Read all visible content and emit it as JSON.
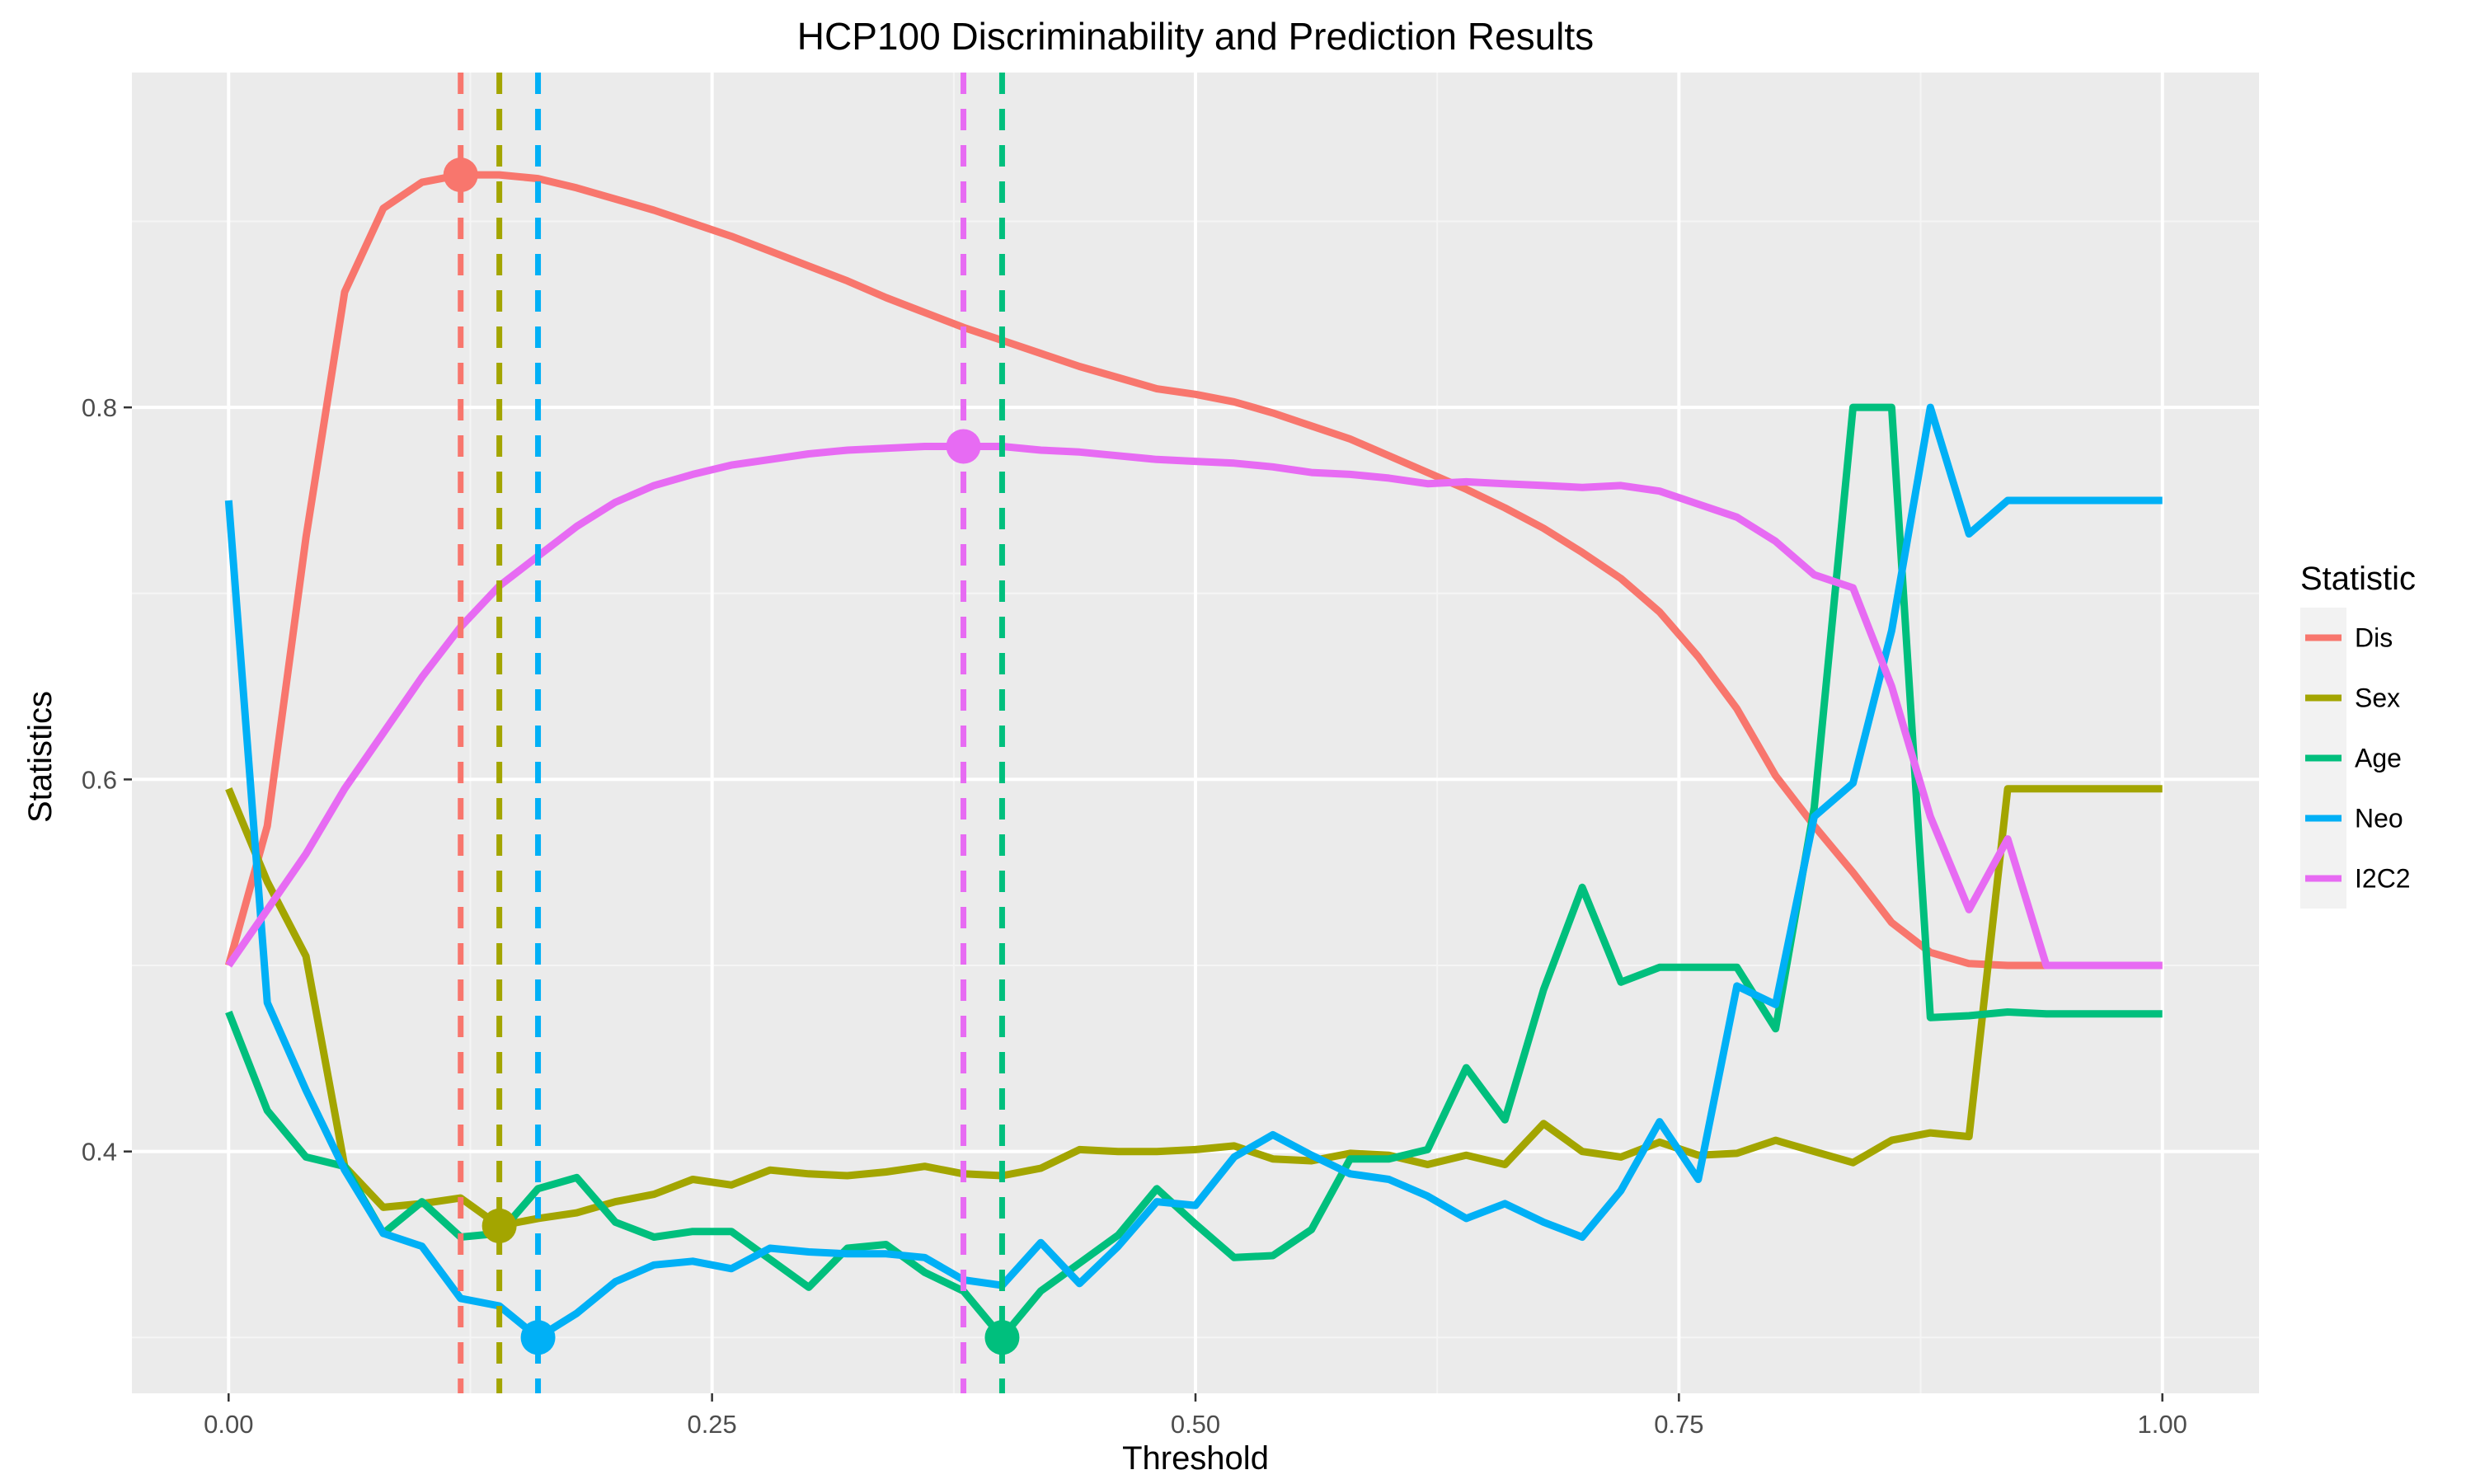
{
  "chart_data": {
    "type": "line",
    "title": "HCP100 Discriminability and Prediction Results",
    "xlabel": "Threshold",
    "ylabel": "Statistics",
    "xlim": [
      -0.05,
      1.05
    ],
    "ylim": [
      0.27,
      0.98
    ],
    "xticks": [
      0.0,
      0.25,
      0.5,
      0.75,
      1.0
    ],
    "xtick_labels": [
      "0.00",
      "0.25",
      "0.50",
      "0.75",
      "1.00"
    ],
    "yticks": [
      0.4,
      0.6,
      0.8
    ],
    "ytick_labels": [
      "0.4",
      "0.6",
      "0.8"
    ],
    "grid": true,
    "legend": {
      "title": "Statistic",
      "position": "right"
    },
    "x": [
      0.0,
      0.02,
      0.04,
      0.06,
      0.08,
      0.1,
      0.12,
      0.14,
      0.16,
      0.18,
      0.2,
      0.22,
      0.24,
      0.26,
      0.28,
      0.3,
      0.32,
      0.34,
      0.36,
      0.38,
      0.4,
      0.42,
      0.44,
      0.46,
      0.48,
      0.5,
      0.52,
      0.54,
      0.56,
      0.58,
      0.6,
      0.62,
      0.64,
      0.66,
      0.68,
      0.7,
      0.72,
      0.74,
      0.76,
      0.78,
      0.8,
      0.82,
      0.84,
      0.86,
      0.88,
      0.9,
      0.92,
      0.94,
      0.96,
      0.98,
      1.0
    ],
    "series": [
      {
        "name": "Dis",
        "color": "#F8766D",
        "values": [
          0.5,
          0.575,
          0.73,
          0.862,
          0.907,
          0.921,
          0.925,
          0.925,
          0.923,
          0.918,
          0.912,
          0.906,
          0.899,
          0.892,
          0.884,
          0.876,
          0.868,
          0.859,
          0.851,
          0.843,
          0.836,
          0.829,
          0.822,
          0.816,
          0.81,
          0.807,
          0.803,
          0.797,
          0.79,
          0.783,
          0.774,
          0.765,
          0.756,
          0.746,
          0.735,
          0.722,
          0.708,
          0.69,
          0.666,
          0.638,
          0.602,
          0.575,
          0.55,
          0.523,
          0.507,
          0.501,
          0.5,
          0.5,
          0.5,
          0.5,
          0.5
        ],
        "optimum": {
          "x": 0.12,
          "y": 0.925
        }
      },
      {
        "name": "Sex",
        "color": "#A3A500",
        "values": [
          0.595,
          0.545,
          0.505,
          0.392,
          0.37,
          0.372,
          0.375,
          0.36,
          0.364,
          0.367,
          0.373,
          0.377,
          0.385,
          0.382,
          0.39,
          0.388,
          0.387,
          0.389,
          0.392,
          0.388,
          0.387,
          0.391,
          0.401,
          0.4,
          0.4,
          0.401,
          0.403,
          0.396,
          0.395,
          0.399,
          0.398,
          0.393,
          0.398,
          0.393,
          0.415,
          0.4,
          0.397,
          0.405,
          0.398,
          0.399,
          0.406,
          0.4,
          0.394,
          0.406,
          0.41,
          0.408,
          0.595,
          0.595,
          0.595,
          0.595,
          0.595
        ],
        "optimum": {
          "x": 0.14,
          "y": 0.36
        }
      },
      {
        "name": "Age",
        "color": "#00BF7D",
        "values": [
          0.475,
          0.422,
          0.397,
          0.392,
          0.356,
          0.373,
          0.354,
          0.356,
          0.38,
          0.386,
          0.362,
          0.354,
          0.357,
          0.357,
          0.342,
          0.327,
          0.348,
          0.35,
          0.335,
          0.325,
          0.3,
          0.325,
          0.34,
          0.355,
          0.38,
          0.361,
          0.343,
          0.344,
          0.358,
          0.396,
          0.396,
          0.401,
          0.445,
          0.417,
          0.487,
          0.542,
          0.491,
          0.499,
          0.499,
          0.499,
          0.466,
          0.585,
          0.8,
          0.8,
          0.472,
          0.473,
          0.475,
          0.474,
          0.474,
          0.474,
          0.474
        ],
        "optimum": {
          "x": 0.4,
          "y": 0.3
        }
      },
      {
        "name": "Neo",
        "color": "#00B0F6",
        "values": [
          0.75,
          0.48,
          0.433,
          0.39,
          0.356,
          0.349,
          0.321,
          0.317,
          0.3,
          0.313,
          0.33,
          0.339,
          0.341,
          0.337,
          0.348,
          0.346,
          0.345,
          0.345,
          0.343,
          0.331,
          0.328,
          0.351,
          0.329,
          0.349,
          0.373,
          0.371,
          0.397,
          0.409,
          0.398,
          0.388,
          0.385,
          0.376,
          0.364,
          0.372,
          0.362,
          0.354,
          0.379,
          0.416,
          0.385,
          0.489,
          0.479,
          0.58,
          0.598,
          0.68,
          0.8,
          0.732,
          0.75,
          0.75,
          0.75,
          0.75,
          0.75
        ],
        "optimum": {
          "x": 0.16,
          "y": 0.3
        }
      },
      {
        "name": "I2C2",
        "color": "#E76BF3",
        "values": [
          0.5,
          0.53,
          0.56,
          0.595,
          0.625,
          0.655,
          0.682,
          0.704,
          0.72,
          0.736,
          0.749,
          0.758,
          0.764,
          0.769,
          0.772,
          0.775,
          0.777,
          0.778,
          0.779,
          0.779,
          0.779,
          0.777,
          0.776,
          0.774,
          0.772,
          0.771,
          0.77,
          0.768,
          0.765,
          0.764,
          0.762,
          0.759,
          0.76,
          0.759,
          0.758,
          0.757,
          0.758,
          0.755,
          0.748,
          0.741,
          0.728,
          0.71,
          0.703,
          0.65,
          0.58,
          0.53,
          0.568,
          0.5,
          0.5,
          0.5,
          0.5
        ],
        "optimum": {
          "x": 0.38,
          "y": 0.779
        }
      }
    ]
  }
}
